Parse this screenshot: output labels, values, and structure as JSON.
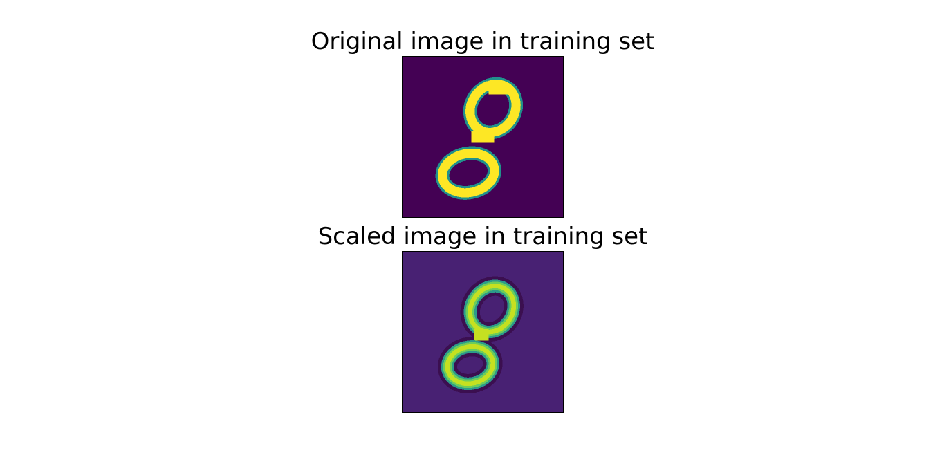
{
  "panels": [
    {
      "title": "Original image in training set",
      "colors": {
        "background": "#440154",
        "stroke_outer": "#21918c",
        "stroke_mid": "#5ec962",
        "stroke_core": "#fde725"
      }
    },
    {
      "title": "Scaled image in training set",
      "colors": {
        "background": "#482173",
        "edge_dark": "#3b0f50",
        "stroke_outer": "#2c9b8a",
        "stroke_mid": "#6ccd5a",
        "stroke_core": "#c5e021"
      }
    }
  ]
}
